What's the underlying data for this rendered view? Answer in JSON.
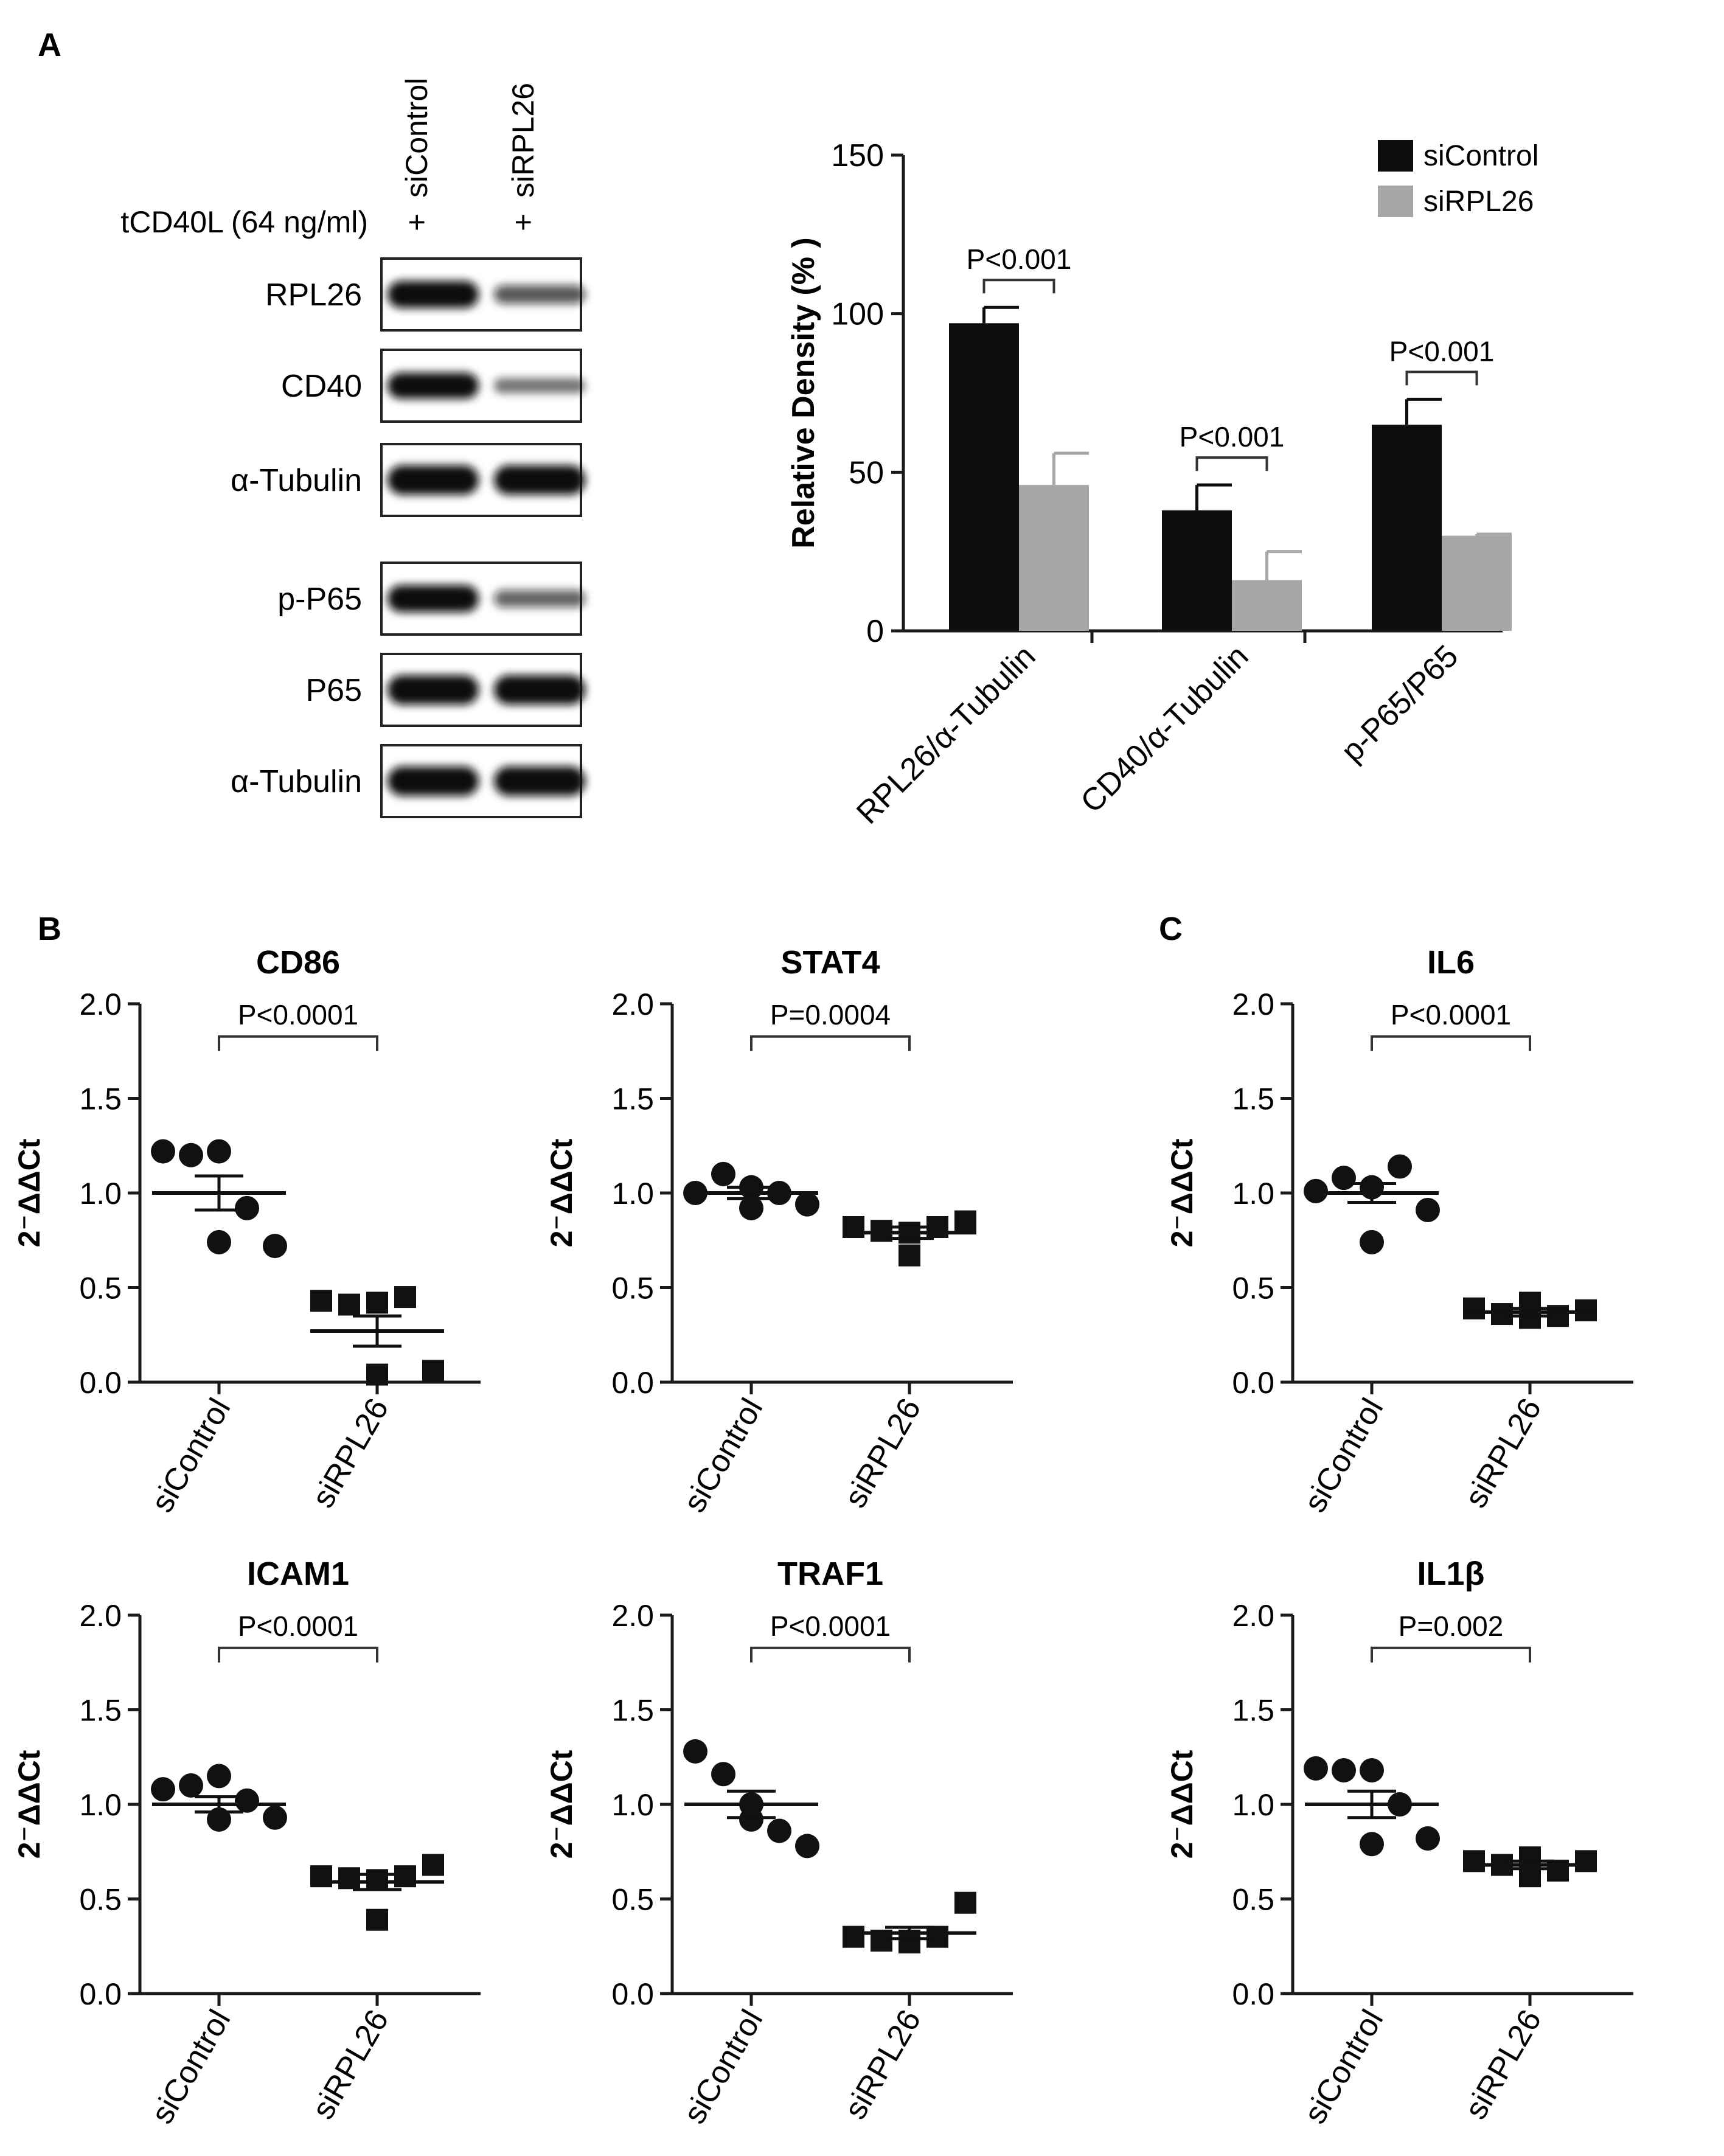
{
  "panel_labels": {
    "a": "A",
    "b": "B",
    "c": "C"
  },
  "blot": {
    "treatment_label": "tCD40L (64 ng/ml)",
    "lanes": [
      {
        "label": "siControl",
        "sign": "+"
      },
      {
        "label": "siRPL26",
        "sign": "+"
      }
    ],
    "rows": [
      {
        "label": "RPL26",
        "intensities": [
          0.85,
          0.45
        ]
      },
      {
        "label": "CD40",
        "intensities": [
          0.8,
          0.3
        ]
      },
      {
        "label": "α-Tubulin",
        "intensities": [
          0.95,
          0.95
        ]
      },
      {
        "label": "p-P65",
        "intensities": [
          0.85,
          0.4
        ]
      },
      {
        "label": "P65",
        "intensities": [
          0.95,
          0.95
        ]
      },
      {
        "label": "α-Tubulin",
        "intensities": [
          0.95,
          0.95
        ]
      }
    ]
  },
  "colors": {
    "siControl": "#0d0d0d",
    "siRPL26": "#a6a6a6",
    "axis": "#1a1a1a",
    "band": "#0a0a0a"
  },
  "chart_data": [
    {
      "id": "A",
      "type": "bar",
      "ylabel": "Relative Density (% )",
      "ylim": [
        0,
        150
      ],
      "yticks": [
        0,
        50,
        100,
        150
      ],
      "categories": [
        "RPL26/α-Tubulin",
        "CD40/α-Tubulin",
        "p-P65/P65"
      ],
      "series": [
        {
          "name": "siControl",
          "values": [
            97,
            38,
            65
          ],
          "errors": [
            5,
            8,
            8
          ]
        },
        {
          "name": "siRPL26",
          "values": [
            46,
            16,
            30
          ],
          "errors": [
            10,
            9,
            0.5
          ]
        }
      ],
      "annotations": [
        "P<0.001",
        "P<0.001",
        "P<0.001"
      ],
      "legend_position": "top-right"
    },
    {
      "id": "CD86",
      "type": "scatter",
      "title": "CD86",
      "ylabel": "2⁻ΔΔCt",
      "ylim": [
        0,
        2.0
      ],
      "yticks": [
        "0.0",
        "0.5",
        "1.0",
        "1.5",
        "2.0"
      ],
      "categories": [
        "siControl",
        "siRPL26"
      ],
      "pvalue": "P<0.0001",
      "groups": [
        {
          "name": "siControl",
          "marker": "circle",
          "values": [
            1.22,
            1.2,
            1.22,
            0.92,
            0.72,
            0.74
          ],
          "mean": 1.0,
          "sem": 0.09
        },
        {
          "name": "siRPL26",
          "marker": "square",
          "values": [
            0.43,
            0.41,
            0.42,
            0.45,
            0.06,
            0.04
          ],
          "mean": 0.27,
          "sem": 0.08
        }
      ]
    },
    {
      "id": "STAT4",
      "type": "scatter",
      "title": "STAT4",
      "ylabel": "2⁻ΔΔCt",
      "ylim": [
        0,
        2.0
      ],
      "yticks": [
        "0.0",
        "0.5",
        "1.0",
        "1.5",
        "2.0"
      ],
      "categories": [
        "siControl",
        "siRPL26"
      ],
      "pvalue": "P=0.0004",
      "groups": [
        {
          "name": "siControl",
          "marker": "circle",
          "values": [
            1.0,
            1.1,
            1.03,
            1.0,
            0.94,
            0.92
          ],
          "mean": 1.0,
          "sem": 0.03
        },
        {
          "name": "siRPL26",
          "marker": "square",
          "values": [
            0.82,
            0.8,
            0.79,
            0.82,
            0.85,
            0.67
          ],
          "mean": 0.79,
          "sem": 0.03
        }
      ]
    },
    {
      "id": "IL6",
      "type": "scatter",
      "title": "IL6",
      "ylabel": "2⁻ΔΔCt",
      "ylim": [
        0,
        2.0
      ],
      "yticks": [
        "0.0",
        "0.5",
        "1.0",
        "1.5",
        "2.0"
      ],
      "categories": [
        "siControl",
        "siRPL26"
      ],
      "pvalue": "P<0.0001",
      "groups": [
        {
          "name": "siControl",
          "marker": "circle",
          "values": [
            1.01,
            1.08,
            1.03,
            1.14,
            0.91,
            0.74
          ],
          "mean": 1.0,
          "sem": 0.05
        },
        {
          "name": "siRPL26",
          "marker": "square",
          "values": [
            0.39,
            0.36,
            0.34,
            0.35,
            0.38,
            0.42
          ],
          "mean": 0.37,
          "sem": 0.02
        }
      ]
    },
    {
      "id": "ICAM1",
      "type": "scatter",
      "title": "ICAM1",
      "ylabel": "2⁻ΔΔCt",
      "ylim": [
        0,
        2.0
      ],
      "yticks": [
        "0.0",
        "0.5",
        "1.0",
        "1.5",
        "2.0"
      ],
      "categories": [
        "siControl",
        "siRPL26"
      ],
      "pvalue": "P<0.0001",
      "groups": [
        {
          "name": "siControl",
          "marker": "circle",
          "values": [
            1.08,
            1.1,
            1.15,
            1.02,
            0.93,
            0.92
          ],
          "mean": 1.0,
          "sem": 0.04
        },
        {
          "name": "siRPL26",
          "marker": "square",
          "values": [
            0.62,
            0.61,
            0.6,
            0.62,
            0.68,
            0.39
          ],
          "mean": 0.59,
          "sem": 0.04
        }
      ]
    },
    {
      "id": "TRAF1",
      "type": "scatter",
      "title": "TRAF1",
      "ylabel": "2⁻ΔΔCt",
      "ylim": [
        0,
        2.0
      ],
      "yticks": [
        "0.0",
        "0.5",
        "1.0",
        "1.5",
        "2.0"
      ],
      "categories": [
        "siControl",
        "siRPL26"
      ],
      "pvalue": "P<0.0001",
      "groups": [
        {
          "name": "siControl",
          "marker": "circle",
          "values": [
            1.28,
            1.16,
            1.0,
            0.86,
            0.78,
            0.92
          ],
          "mean": 1.0,
          "sem": 0.07
        },
        {
          "name": "siRPL26",
          "marker": "square",
          "values": [
            0.3,
            0.28,
            0.27,
            0.3,
            0.48,
            0.28
          ],
          "mean": 0.32,
          "sem": 0.03
        }
      ]
    },
    {
      "id": "IL1β",
      "type": "scatter",
      "title": "IL1β",
      "ylabel": "2⁻ΔΔCt",
      "ylim": [
        0,
        2.0
      ],
      "yticks": [
        "0.0",
        "0.5",
        "1.0",
        "1.5",
        "2.0"
      ],
      "categories": [
        "siControl",
        "siRPL26"
      ],
      "pvalue": "P=0.002",
      "groups": [
        {
          "name": "siControl",
          "marker": "circle",
          "values": [
            1.19,
            1.18,
            1.18,
            1.0,
            0.82,
            0.79
          ],
          "mean": 1.0,
          "sem": 0.07
        },
        {
          "name": "siRPL26",
          "marker": "square",
          "values": [
            0.7,
            0.68,
            0.62,
            0.65,
            0.7,
            0.72
          ],
          "mean": 0.68,
          "sem": 0.02
        }
      ]
    }
  ]
}
